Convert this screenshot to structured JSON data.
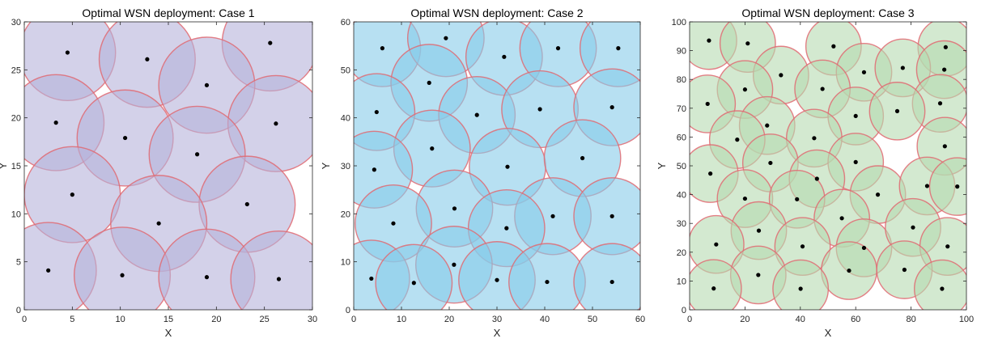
{
  "chart_data": [
    {
      "type": "scatter",
      "title": "Optimal WSN deployment: Case 1",
      "xlabel": "X",
      "ylabel": "Y",
      "xlim": [
        0,
        30
      ],
      "ylim": [
        0,
        30
      ],
      "xticks": [
        0,
        5,
        10,
        15,
        20,
        25,
        30
      ],
      "yticks": [
        0,
        5,
        10,
        15,
        20,
        25,
        30
      ],
      "radius": 5,
      "colors": {
        "fill": "#b5b3db",
        "edge": "#e06a72",
        "node": "#000000"
      },
      "nodes": [
        [
          4.5,
          26.8
        ],
        [
          12.8,
          26.1
        ],
        [
          25.6,
          27.8
        ],
        [
          19.0,
          23.4
        ],
        [
          3.3,
          19.5
        ],
        [
          10.5,
          17.9
        ],
        [
          26.2,
          19.4
        ],
        [
          18.0,
          16.2
        ],
        [
          5.0,
          12.0
        ],
        [
          23.2,
          11.0
        ],
        [
          14.0,
          9.0
        ],
        [
          2.5,
          4.1
        ],
        [
          10.2,
          3.6
        ],
        [
          19.0,
          3.4
        ],
        [
          26.5,
          3.2
        ]
      ]
    },
    {
      "type": "scatter",
      "title": "Optimal WSN deployment: Case 2",
      "xlabel": "X",
      "ylabel": "Y",
      "xlim": [
        0,
        60
      ],
      "ylim": [
        0,
        60
      ],
      "xticks": [
        0,
        10,
        20,
        30,
        40,
        50,
        60
      ],
      "yticks": [
        0,
        10,
        20,
        30,
        40,
        50,
        60
      ],
      "radius": 8,
      "colors": {
        "fill": "#87cbe9",
        "edge": "#e06a72",
        "node": "#000000"
      },
      "nodes": [
        [
          6.0,
          54.5
        ],
        [
          19.3,
          56.6
        ],
        [
          31.5,
          52.7
        ],
        [
          42.8,
          54.5
        ],
        [
          55.4,
          54.5
        ],
        [
          15.8,
          47.3
        ],
        [
          4.8,
          41.2
        ],
        [
          25.8,
          40.6
        ],
        [
          39.0,
          41.8
        ],
        [
          54.1,
          42.2
        ],
        [
          16.4,
          33.6
        ],
        [
          4.3,
          29.2
        ],
        [
          32.2,
          29.8
        ],
        [
          47.9,
          31.6
        ],
        [
          21.1,
          21.1
        ],
        [
          8.3,
          18.0
        ],
        [
          41.7,
          19.5
        ],
        [
          54.1,
          19.5
        ],
        [
          32.0,
          17.0
        ],
        [
          21.0,
          9.4
        ],
        [
          3.7,
          6.5
        ],
        [
          12.6,
          5.6
        ],
        [
          30.0,
          6.2
        ],
        [
          40.5,
          5.8
        ],
        [
          54.1,
          5.8
        ]
      ]
    },
    {
      "type": "scatter",
      "title": "Optimal WSN deployment: Case 3",
      "xlabel": "X",
      "ylabel": "Y",
      "xlim": [
        0,
        100
      ],
      "ylim": [
        0,
        100
      ],
      "xticks": [
        0,
        20,
        40,
        60,
        80,
        100
      ],
      "yticks": [
        0,
        10,
        20,
        30,
        40,
        50,
        60,
        70,
        80,
        90,
        100
      ],
      "radius": 10,
      "colors": {
        "fill": "#b6dbb0",
        "edge": "#e06a72",
        "node": "#000000"
      },
      "nodes": [
        [
          7,
          93.5
        ],
        [
          21,
          92.5
        ],
        [
          52,
          91.5
        ],
        [
          92.5,
          91.2
        ],
        [
          33,
          81.5
        ],
        [
          63,
          82.5
        ],
        [
          77,
          84.0
        ],
        [
          92.0,
          83.4
        ],
        [
          20,
          76.5
        ],
        [
          48,
          76.7
        ],
        [
          6.5,
          71.5
        ],
        [
          90.5,
          71.7
        ],
        [
          60,
          67.3
        ],
        [
          75,
          69.0
        ],
        [
          28,
          64.0
        ],
        [
          17.2,
          59.1
        ],
        [
          45,
          59.6
        ],
        [
          60,
          51.3
        ],
        [
          29.2,
          51.0
        ],
        [
          92.2,
          56.8
        ],
        [
          7.5,
          47.3
        ],
        [
          46,
          45.5
        ],
        [
          20.0,
          38.6
        ],
        [
          38.8,
          38.4
        ],
        [
          68,
          40.0
        ],
        [
          85.8,
          43.0
        ],
        [
          96.7,
          42.8
        ],
        [
          25,
          27.5
        ],
        [
          55,
          31.8
        ],
        [
          40.8,
          22.0
        ],
        [
          63,
          21.5
        ],
        [
          80.7,
          28.6
        ],
        [
          9.6,
          22.7
        ],
        [
          93.2,
          22.0
        ],
        [
          24.8,
          12.1
        ],
        [
          57.6,
          13.6
        ],
        [
          77.6,
          13.9
        ],
        [
          8.7,
          7.4
        ],
        [
          40.1,
          7.3
        ],
        [
          91.2,
          7.3
        ]
      ]
    }
  ]
}
